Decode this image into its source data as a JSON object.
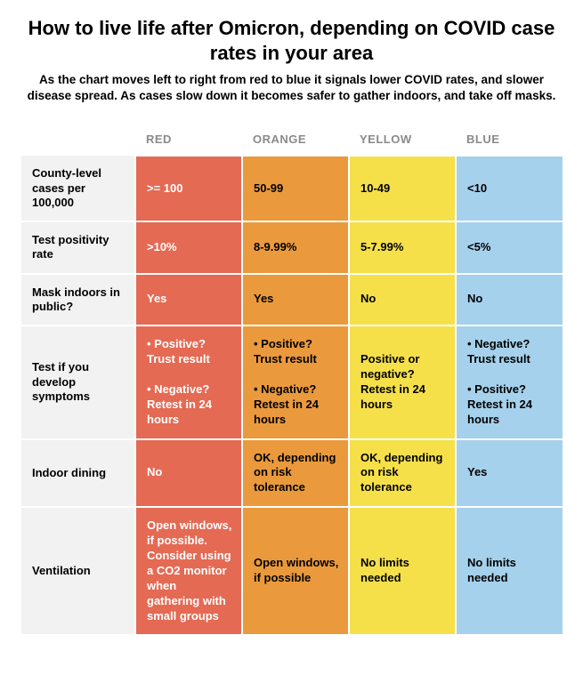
{
  "title": "How to live life after Omicron, depending on COVID case rates in your area",
  "subtitle": "As the chart moves left to right from red to blue it signals lower COVID rates, and slower disease spread. As cases slow down it becomes safer to gather indoors, and take off masks.",
  "table": {
    "type": "table",
    "background_color": "#ffffff",
    "row_label_bg": "#f2f2f2",
    "header_text_color": "#8a8a8a",
    "cell_border_color": "#ffffff",
    "font_family": "Helvetica Neue, Arial, sans-serif",
    "title_fontsize": 22,
    "subtitle_fontsize": 13.5,
    "cell_fontsize": 13,
    "columns": [
      {
        "id": "red",
        "label": "RED",
        "bg_color": "#e46a54",
        "text_color": "#ffffff"
      },
      {
        "id": "orange",
        "label": "ORANGE",
        "bg_color": "#ea9a3c",
        "text_color": "#000000"
      },
      {
        "id": "yellow",
        "label": "YELLOW",
        "bg_color": "#f6e04a",
        "text_color": "#000000"
      },
      {
        "id": "blue",
        "label": "BLUE",
        "bg_color": "#a5d1ec",
        "text_color": "#000000"
      }
    ],
    "rows": [
      {
        "label": "County-level cases per 100,000",
        "cells": {
          "red": ">= 100",
          "orange": "50-99",
          "yellow": "10-49",
          "blue": "<10"
        }
      },
      {
        "label": "Test positivity rate",
        "cells": {
          "red": ">10%",
          "orange": "8-9.99%",
          "yellow": "5-7.99%",
          "blue": "<5%"
        }
      },
      {
        "label": "Mask indoors in public?",
        "cells": {
          "red": "Yes",
          "orange": "Yes",
          "yellow": "No",
          "blue": "No"
        }
      },
      {
        "label": "Test if you develop symptoms",
        "cells": {
          "red": "• Positive? Trust result\n\n• Negative? Retest in 24 hours",
          "orange": "• Positive? Trust result\n\n• Negative? Retest in 24 hours",
          "yellow": "Positive or negative? Retest in 24 hours",
          "blue": "• Negative? Trust result\n\n• Positive? Retest in 24 hours"
        }
      },
      {
        "label": "Indoor dining",
        "cells": {
          "red": "No",
          "orange": "OK, depending on risk tolerance",
          "yellow": "OK, depending on risk tolerance",
          "blue": "Yes"
        }
      },
      {
        "label": "Ventilation",
        "cells": {
          "red": "Open windows, if possible. Consider using a CO2 monitor when gathering with small groups",
          "orange": "Open windows, if possible",
          "yellow": "No limits needed",
          "blue": "No limits needed"
        }
      }
    ]
  }
}
